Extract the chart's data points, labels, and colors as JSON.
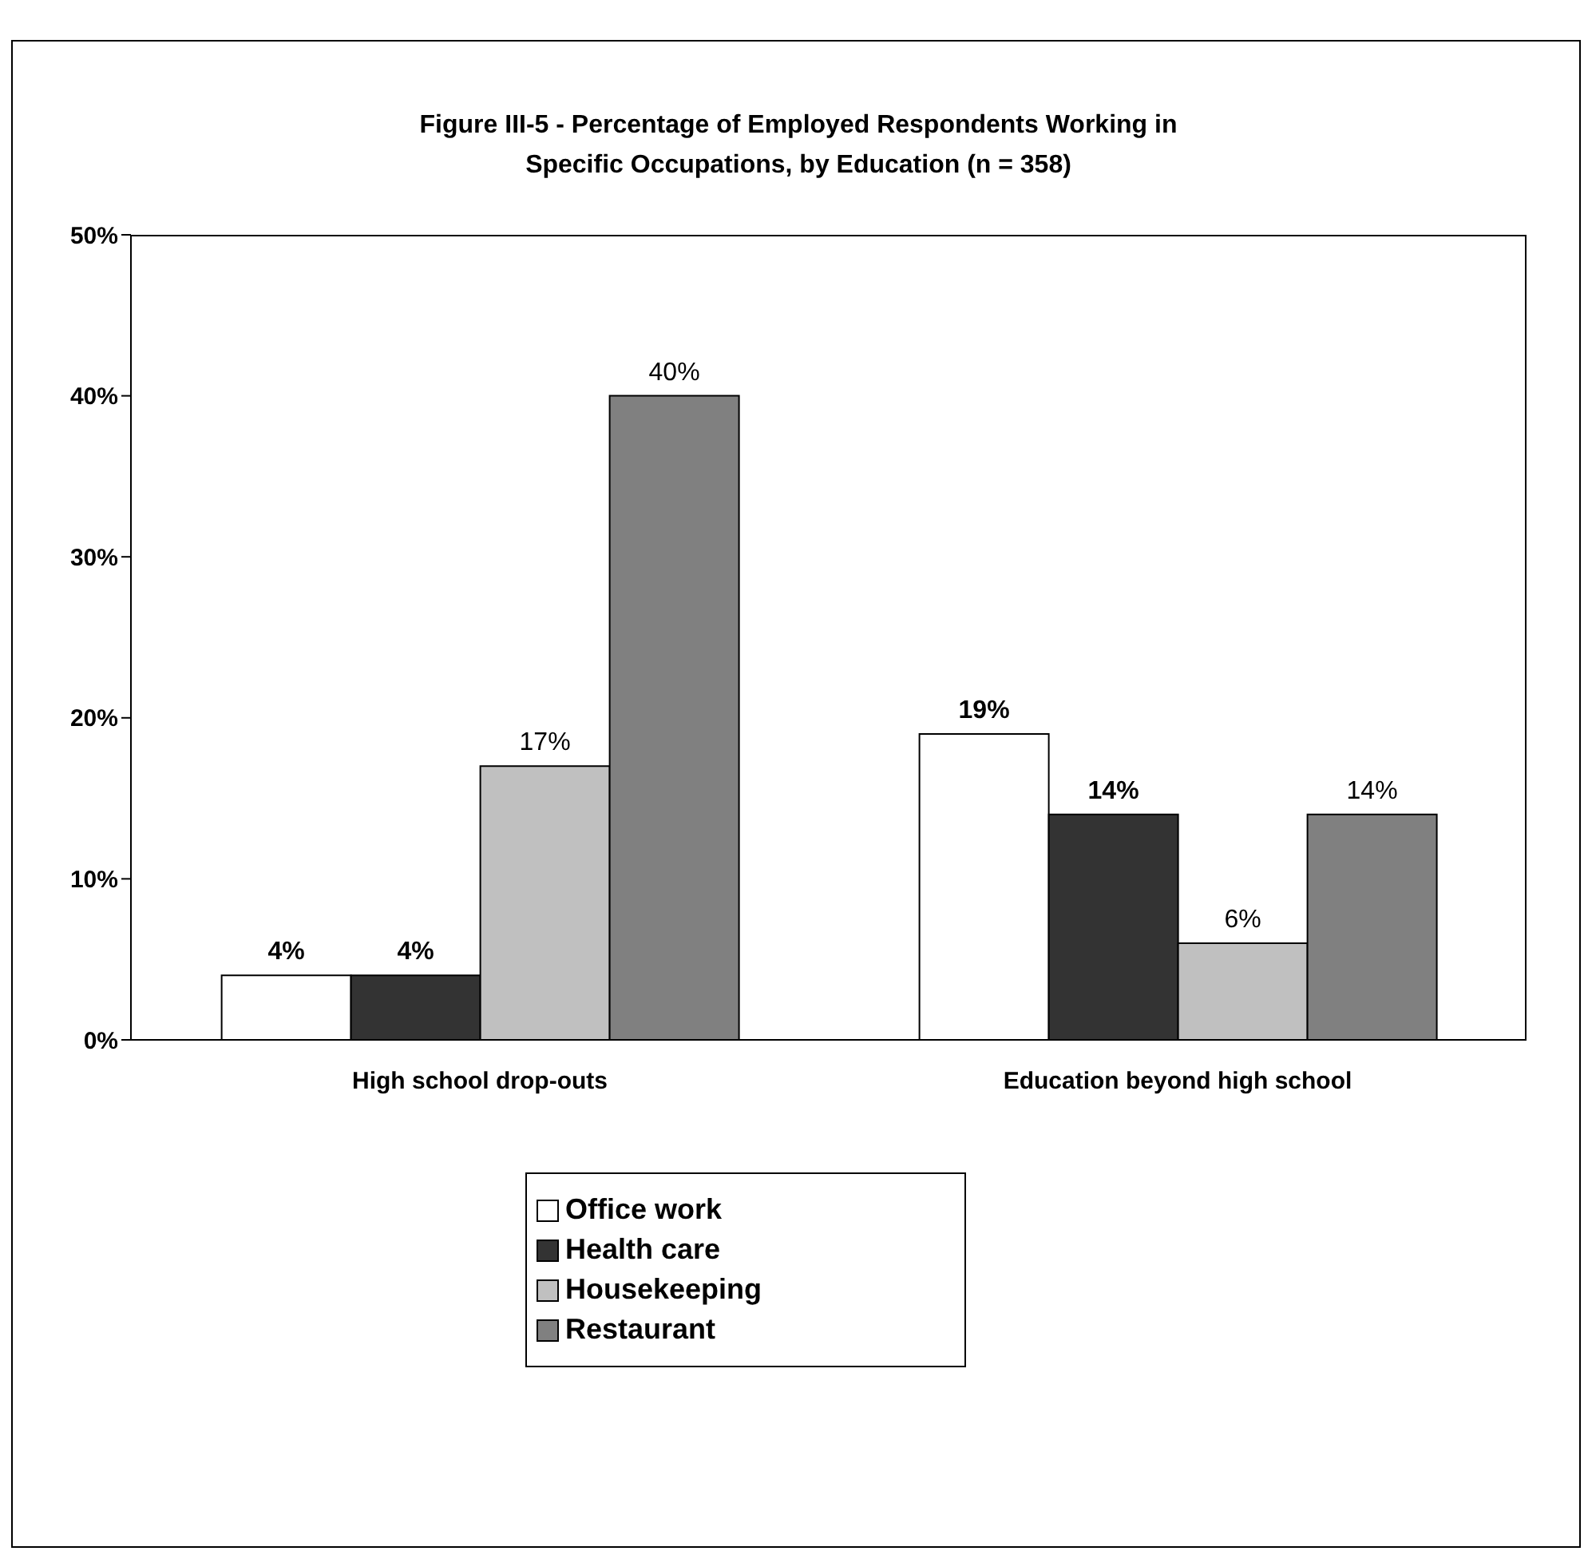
{
  "chart_data": {
    "type": "bar",
    "title": "Figure III-5 - Percentage of Employed Respondents Working in Specific Occupations, by Education (n = 358)",
    "categories": [
      "High school drop-outs",
      "Education beyond high school"
    ],
    "series": [
      {
        "name": "Office work",
        "color": "#ffffff",
        "values": [
          4,
          19
        ],
        "value_labels": [
          "4%",
          "19%"
        ]
      },
      {
        "name": "Health care",
        "color": "#333333",
        "values": [
          4,
          14
        ],
        "value_labels": [
          "4%",
          "14%"
        ]
      },
      {
        "name": "Housekeeping",
        "color": "#c0c0c0",
        "values": [
          17,
          6
        ],
        "value_labels": [
          "17%",
          "6%"
        ]
      },
      {
        "name": "Restaurant",
        "color": "#808080",
        "values": [
          40,
          14
        ],
        "value_labels": [
          "40%",
          "14%"
        ]
      }
    ],
    "ylim": [
      0,
      50
    ],
    "yticks": [
      {
        "value": 0,
        "label": "0%"
      },
      {
        "value": 10,
        "label": "10%"
      },
      {
        "value": 20,
        "label": "20%"
      },
      {
        "value": 30,
        "label": "30%"
      },
      {
        "value": 40,
        "label": "40%"
      },
      {
        "value": 50,
        "label": "50%"
      }
    ],
    "legend": "bottom"
  }
}
